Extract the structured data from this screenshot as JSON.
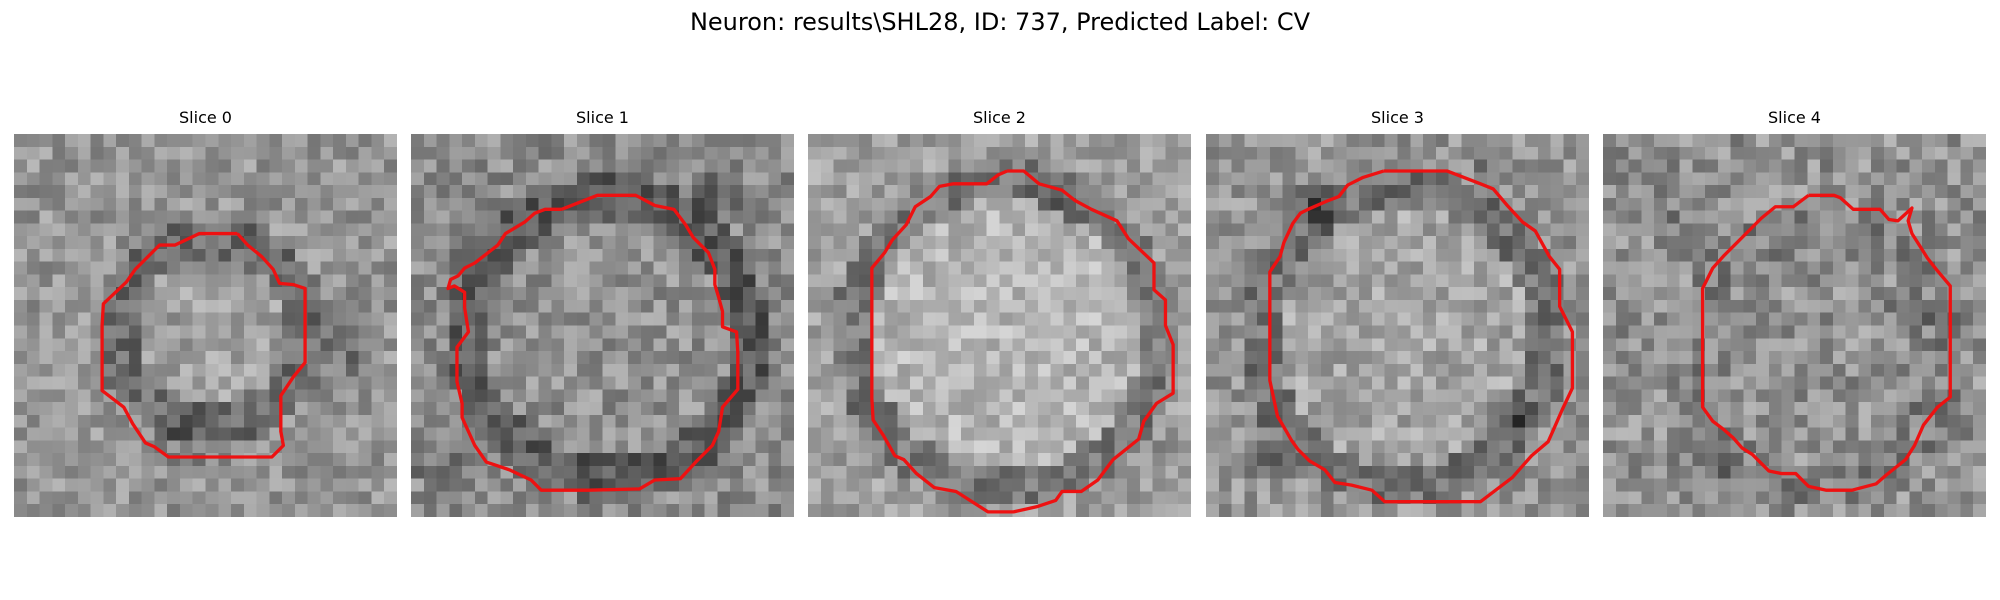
{
  "figure": {
    "title": "Neuron: results\\SHL28, ID: 737, Predicted Label: CV"
  },
  "colors": {
    "contour": "#ee1111",
    "background": "#ffffff",
    "text": "#000000"
  },
  "panels": [
    {
      "title": "Slice 0",
      "seed": 11,
      "base": 150,
      "noise": 34,
      "cell": {
        "cx": 15.5,
        "cy": 15.5,
        "r": 6.8,
        "rim": 2.2,
        "inside": 10,
        "rim_delta": -42,
        "outside": 0
      },
      "dark_blobs": [
        [
          26,
          16.5,
          2.2,
          -45
        ],
        [
          14,
          24,
          3.0,
          -25
        ],
        [
          20,
          5,
          2.2,
          -20
        ]
      ],
      "contour": [
        [
          17.5,
          7.8
        ],
        [
          16.9,
          7.8
        ],
        [
          14.5,
          7.8
        ],
        [
          12.6,
          8.7
        ],
        [
          11.4,
          8.7
        ],
        [
          10.5,
          9.6
        ],
        [
          9.5,
          10.6
        ],
        [
          8.8,
          11.6
        ],
        [
          7.0,
          13.3
        ],
        [
          6.9,
          15.0
        ],
        [
          6.9,
          16.9
        ],
        [
          6.9,
          20.1
        ],
        [
          8.6,
          21.4
        ],
        [
          9.3,
          22.7
        ],
        [
          10.3,
          24.2
        ],
        [
          11.0,
          24.5
        ],
        [
          12.1,
          25.3
        ],
        [
          17.2,
          25.3
        ],
        [
          20.2,
          25.3
        ],
        [
          21.1,
          24.4
        ],
        [
          20.9,
          23.3
        ],
        [
          20.9,
          21.8
        ],
        [
          20.9,
          20.5
        ],
        [
          21.9,
          19.0
        ],
        [
          22.8,
          17.9
        ],
        [
          22.8,
          16.2
        ],
        [
          22.8,
          12.1
        ],
        [
          21.9,
          11.8
        ],
        [
          20.8,
          11.7
        ],
        [
          20.3,
          10.6
        ],
        [
          19.4,
          9.6
        ],
        [
          18.3,
          8.7
        ]
      ]
    },
    {
      "title": "Slice 1",
      "seed": 27,
      "base": 140,
      "noise": 36,
      "cell": {
        "cx": 15.5,
        "cy": 16.0,
        "r": 10.5,
        "rim": 2.2,
        "inside": 5,
        "rim_delta": -48,
        "outside": 0
      },
      "dark_blobs": [
        [
          24,
          5,
          2.5,
          -35
        ],
        [
          2,
          26,
          2.0,
          -25
        ],
        [
          3,
          10,
          2.0,
          -15
        ]
      ],
      "contour": [
        [
          11.8,
          5.9
        ],
        [
          14.6,
          4.8
        ],
        [
          17.6,
          4.8
        ],
        [
          19.1,
          5.6
        ],
        [
          20.6,
          5.9
        ],
        [
          21.5,
          7.1
        ],
        [
          22.1,
          8.1
        ],
        [
          23.3,
          9.3
        ],
        [
          23.8,
          10.6
        ],
        [
          23.8,
          11.8
        ],
        [
          24.1,
          12.8
        ],
        [
          24.4,
          13.9
        ],
        [
          24.4,
          15.1
        ],
        [
          25.5,
          15.5
        ],
        [
          25.6,
          17.1
        ],
        [
          25.6,
          18.5
        ],
        [
          25.6,
          20.0
        ],
        [
          24.4,
          21.4
        ],
        [
          24.1,
          23.3
        ],
        [
          23.6,
          24.4
        ],
        [
          22.3,
          25.7
        ],
        [
          21.1,
          27.0
        ],
        [
          19.1,
          27.1
        ],
        [
          17.9,
          27.8
        ],
        [
          13.9,
          27.9
        ],
        [
          10.2,
          27.9
        ],
        [
          9.4,
          27.1
        ],
        [
          7.7,
          26.3
        ],
        [
          5.9,
          25.7
        ],
        [
          5.0,
          24.4
        ],
        [
          4.0,
          22.2
        ],
        [
          4.0,
          21.1
        ],
        [
          3.6,
          19.4
        ],
        [
          3.6,
          18.4
        ],
        [
          3.6,
          16.7
        ],
        [
          4.5,
          15.5
        ],
        [
          4.2,
          13.6
        ],
        [
          4.2,
          12.4
        ],
        [
          3.4,
          11.9
        ],
        [
          2.9,
          12.1
        ],
        [
          3.1,
          11.4
        ],
        [
          3.7,
          11.1
        ],
        [
          4.2,
          10.5
        ],
        [
          5.0,
          10.1
        ],
        [
          5.9,
          9.4
        ],
        [
          6.8,
          8.7
        ],
        [
          7.4,
          7.8
        ],
        [
          8.9,
          6.9
        ],
        [
          9.7,
          6.2
        ],
        [
          10.5,
          5.9
        ]
      ]
    },
    {
      "title": "Slice 2",
      "seed": 43,
      "base": 160,
      "noise": 32,
      "cell": {
        "cx": 15.5,
        "cy": 15.8,
        "r": 11.5,
        "rim": 2.0,
        "inside": 22,
        "rim_delta": -40,
        "outside": 0
      },
      "dark_blobs": [
        [
          19,
          5.5,
          2.2,
          -35
        ],
        [
          5,
          22,
          1.6,
          -20
        ],
        [
          27,
          24,
          1.8,
          -15
        ]
      ],
      "contour": [
        [
          15.6,
          2.9
        ],
        [
          16.9,
          2.9
        ],
        [
          18.1,
          3.9
        ],
        [
          19.9,
          4.4
        ],
        [
          20.9,
          5.2
        ],
        [
          22.2,
          5.9
        ],
        [
          24.2,
          6.8
        ],
        [
          25.1,
          8.2
        ],
        [
          27.1,
          10.1
        ],
        [
          27.1,
          12.2
        ],
        [
          28.0,
          13.0
        ],
        [
          28.0,
          15.0
        ],
        [
          28.6,
          16.5
        ],
        [
          28.6,
          18.6
        ],
        [
          28.6,
          20.3
        ],
        [
          27.3,
          21.1
        ],
        [
          26.3,
          22.5
        ],
        [
          25.9,
          23.9
        ],
        [
          23.9,
          25.5
        ],
        [
          22.7,
          27.1
        ],
        [
          21.4,
          28.0
        ],
        [
          19.9,
          28.0
        ],
        [
          19.4,
          28.7
        ],
        [
          17.9,
          29.2
        ],
        [
          16.1,
          29.6
        ],
        [
          14.1,
          29.6
        ],
        [
          11.6,
          28.0
        ],
        [
          9.9,
          27.7
        ],
        [
          8.5,
          26.6
        ],
        [
          7.5,
          25.5
        ],
        [
          6.8,
          25.2
        ],
        [
          5.9,
          23.6
        ],
        [
          5.1,
          22.4
        ],
        [
          5.0,
          20.7
        ],
        [
          5.0,
          19.2
        ],
        [
          5.0,
          16.6
        ],
        [
          5.0,
          14.5
        ],
        [
          5.0,
          12.1
        ],
        [
          5.0,
          10.5
        ],
        [
          6.0,
          9.3
        ],
        [
          6.6,
          8.3
        ],
        [
          7.7,
          7.1
        ],
        [
          8.4,
          5.7
        ],
        [
          9.6,
          4.9
        ],
        [
          10.3,
          4.1
        ],
        [
          11.4,
          3.9
        ],
        [
          13.2,
          3.9
        ],
        [
          14.0,
          3.9
        ],
        [
          14.9,
          3.2
        ]
      ]
    },
    {
      "title": "Slice 3",
      "seed": 59,
      "base": 150,
      "noise": 35,
      "cell": {
        "cx": 15.5,
        "cy": 16.0,
        "r": 11.0,
        "rim": 2.0,
        "inside": 15,
        "rim_delta": -35,
        "outside": 0
      },
      "dark_blobs": [
        [
          9,
          5.5,
          2.2,
          -50
        ],
        [
          24,
          22,
          2.0,
          -55
        ],
        [
          5,
          25.5,
          2.0,
          -45
        ],
        [
          22,
          1.5,
          1.8,
          -45
        ]
      ],
      "contour": [
        [
          13.9,
          2.9
        ],
        [
          18.9,
          2.9
        ],
        [
          21.5,
          3.9
        ],
        [
          22.5,
          4.3
        ],
        [
          23.6,
          5.6
        ],
        [
          24.8,
          6.9
        ],
        [
          25.8,
          7.6
        ],
        [
          26.9,
          9.6
        ],
        [
          27.7,
          10.6
        ],
        [
          27.7,
          13.5
        ],
        [
          28.7,
          15.5
        ],
        [
          28.7,
          17.9
        ],
        [
          28.7,
          19.9
        ],
        [
          27.9,
          21.6
        ],
        [
          27.2,
          23.2
        ],
        [
          26.8,
          24.1
        ],
        [
          25.5,
          25.2
        ],
        [
          24.0,
          26.9
        ],
        [
          21.5,
          28.8
        ],
        [
          19.9,
          28.8
        ],
        [
          16.4,
          28.8
        ],
        [
          14.0,
          28.8
        ],
        [
          13.0,
          27.9
        ],
        [
          11.4,
          27.5
        ],
        [
          10.1,
          27.3
        ],
        [
          9.3,
          26.3
        ],
        [
          8.1,
          25.6
        ],
        [
          7.2,
          24.7
        ],
        [
          6.7,
          24.0
        ],
        [
          6.3,
          23.3
        ],
        [
          5.6,
          22.1
        ],
        [
          5.0,
          19.3
        ],
        [
          5.0,
          18.5
        ],
        [
          5.0,
          16.5
        ],
        [
          5.0,
          13.5
        ],
        [
          5.0,
          10.8
        ],
        [
          5.8,
          9.6
        ],
        [
          6.1,
          8.5
        ],
        [
          6.8,
          7.0
        ],
        [
          7.4,
          6.2
        ],
        [
          8.0,
          5.9
        ],
        [
          9.6,
          5.2
        ],
        [
          10.4,
          4.9
        ],
        [
          11.1,
          4.0
        ],
        [
          12.3,
          3.4
        ]
      ]
    },
    {
      "title": "Slice 4",
      "seed": 71,
      "base": 145,
      "noise": 40,
      "cell": {
        "cx": 16.5,
        "cy": 17.5,
        "r": 9.5,
        "rim": 2.0,
        "inside": 0,
        "rim_delta": -15,
        "outside": 0
      },
      "dark_blobs": [
        [
          24,
          14,
          1.6,
          -30
        ],
        [
          6,
          7,
          1.5,
          -20
        ],
        [
          9,
          25,
          2.0,
          -25
        ]
      ],
      "contour": [
        [
          16.1,
          4.8
        ],
        [
          18.1,
          4.8
        ],
        [
          18.6,
          5.0
        ],
        [
          19.6,
          5.9
        ],
        [
          21.7,
          5.9
        ],
        [
          22.4,
          6.7
        ],
        [
          23.1,
          6.8
        ],
        [
          24.2,
          5.8
        ],
        [
          23.9,
          6.8
        ],
        [
          24.2,
          7.8
        ],
        [
          24.9,
          8.9
        ],
        [
          25.4,
          9.7
        ],
        [
          26.1,
          10.6
        ],
        [
          27.2,
          11.9
        ],
        [
          27.2,
          13.0
        ],
        [
          27.2,
          13.8
        ],
        [
          27.2,
          16.2
        ],
        [
          27.2,
          17.9
        ],
        [
          27.2,
          20.6
        ],
        [
          26.2,
          21.4
        ],
        [
          25.1,
          22.8
        ],
        [
          24.4,
          24.4
        ],
        [
          23.7,
          25.5
        ],
        [
          22.2,
          26.7
        ],
        [
          21.4,
          27.4
        ],
        [
          19.5,
          27.9
        ],
        [
          19.0,
          27.9
        ],
        [
          17.5,
          27.9
        ],
        [
          16.1,
          27.6
        ],
        [
          15.8,
          27.3
        ],
        [
          15.1,
          26.6
        ],
        [
          14.0,
          26.6
        ],
        [
          13.0,
          26.4
        ],
        [
          11.7,
          25.1
        ],
        [
          10.9,
          24.6
        ],
        [
          10.2,
          23.8
        ],
        [
          9.4,
          23.1
        ],
        [
          8.6,
          22.5
        ],
        [
          7.8,
          21.4
        ],
        [
          7.8,
          20.5
        ],
        [
          7.8,
          18.2
        ],
        [
          7.8,
          14.7
        ],
        [
          7.8,
          12.1
        ],
        [
          8.6,
          10.5
        ],
        [
          9.5,
          9.5
        ],
        [
          10.5,
          8.5
        ],
        [
          11.5,
          7.5
        ],
        [
          12.4,
          6.6
        ],
        [
          13.5,
          5.7
        ],
        [
          14.9,
          5.7
        ]
      ]
    }
  ]
}
